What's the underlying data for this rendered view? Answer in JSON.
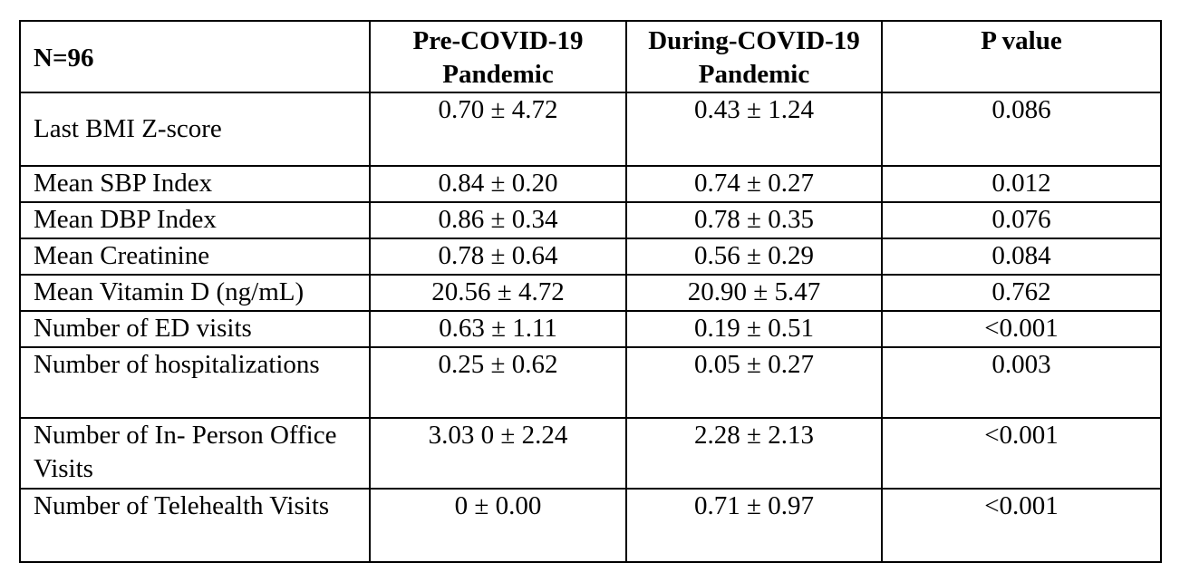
{
  "table": {
    "headers": [
      "N=96",
      "Pre-COVID-19 Pandemic",
      "During-COVID-19 Pandemic",
      "P value"
    ],
    "rows": [
      {
        "label": "Last BMI Z-score",
        "pre": "0.70 ± 4.72",
        "during": "0.43 ± 1.24",
        "p": "0.086"
      },
      {
        "label": "Mean SBP Index",
        "pre": "0.84 ± 0.20",
        "during": "0.74 ± 0.27",
        "p": "0.012"
      },
      {
        "label": "Mean DBP Index",
        "pre": "0.86 ± 0.34",
        "during": "0.78 ± 0.35",
        "p": "0.076"
      },
      {
        "label": "Mean Creatinine",
        "pre": "0.78 ± 0.64",
        "during": "0.56 ± 0.29",
        "p": "0.084"
      },
      {
        "label": "Mean Vitamin D (ng/mL)",
        "pre": "20.56 ± 4.72",
        "during": "20.90 ± 5.47",
        "p": "0.762"
      },
      {
        "label": "Number of ED visits",
        "pre": "0.63 ± 1.11",
        "during": "0.19 ± 0.51",
        "p": "<0.001"
      },
      {
        "label": "Number of hospitalizations",
        "pre": "0.25 ± 0.62",
        "during": "0.05 ± 0.27",
        "p": "0.003"
      },
      {
        "label": "Number of In- Person Office Visits",
        "pre": "3.03 0 ± 2.24",
        "during": "2.28 ± 2.13",
        "p": "<0.001"
      },
      {
        "label": "Number of Telehealth Visits",
        "pre": "0 ± 0.00",
        "during": "0.71 ± 0.97",
        "p": "<0.001"
      }
    ]
  }
}
